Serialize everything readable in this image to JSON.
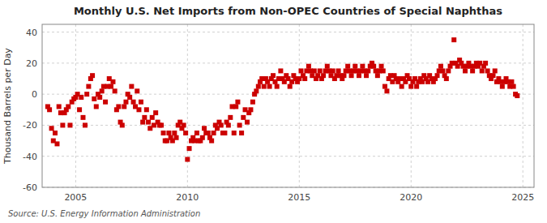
{
  "chart_data": {
    "type": "scatter",
    "title": "Monthly U.S. Net Imports from Non-OPEC Countries of Special Naphthas",
    "ylabel": "Thousand Barrels per Day",
    "annotations": [
      "Source: U.S. Energy Information Administration"
    ],
    "color": "#cc0000",
    "marker": "square",
    "grid": true,
    "xlim": [
      2003.5,
      2025.5
    ],
    "ylim": [
      -60,
      45
    ],
    "xticks": [
      2005,
      2010,
      2015,
      2020,
      2025
    ],
    "yticks": [
      -60,
      -40,
      -20,
      0,
      20,
      40
    ],
    "x": [
      2003.75,
      2003.83,
      2003.92,
      2004.0,
      2004.08,
      2004.17,
      2004.25,
      2004.33,
      2004.42,
      2004.5,
      2004.58,
      2004.67,
      2004.75,
      2004.83,
      2004.92,
      2005.0,
      2005.08,
      2005.17,
      2005.25,
      2005.33,
      2005.42,
      2005.5,
      2005.58,
      2005.67,
      2005.75,
      2005.83,
      2005.92,
      2006.0,
      2006.08,
      2006.17,
      2006.25,
      2006.33,
      2006.42,
      2006.5,
      2006.58,
      2006.67,
      2006.75,
      2006.83,
      2006.92,
      2007.0,
      2007.08,
      2007.17,
      2007.25,
      2007.33,
      2007.42,
      2007.5,
      2007.58,
      2007.67,
      2007.75,
      2007.83,
      2007.92,
      2008.0,
      2008.08,
      2008.17,
      2008.25,
      2008.33,
      2008.42,
      2008.5,
      2008.58,
      2008.67,
      2008.75,
      2008.83,
      2008.92,
      2009.0,
      2009.08,
      2009.17,
      2009.25,
      2009.33,
      2009.42,
      2009.5,
      2009.58,
      2009.67,
      2009.75,
      2009.83,
      2009.92,
      2010.0,
      2010.08,
      2010.17,
      2010.25,
      2010.33,
      2010.42,
      2010.5,
      2010.58,
      2010.67,
      2010.75,
      2010.83,
      2010.92,
      2011.0,
      2011.08,
      2011.17,
      2011.25,
      2011.33,
      2011.42,
      2011.5,
      2011.58,
      2011.67,
      2011.75,
      2011.83,
      2011.92,
      2012.0,
      2012.08,
      2012.17,
      2012.25,
      2012.33,
      2012.42,
      2012.5,
      2012.58,
      2012.67,
      2012.75,
      2012.83,
      2012.92,
      2013.0,
      2013.08,
      2013.17,
      2013.25,
      2013.33,
      2013.42,
      2013.5,
      2013.58,
      2013.67,
      2013.75,
      2013.83,
      2013.92,
      2014.0,
      2014.08,
      2014.17,
      2014.25,
      2014.33,
      2014.42,
      2014.5,
      2014.58,
      2014.67,
      2014.75,
      2014.83,
      2014.92,
      2015.0,
      2015.08,
      2015.17,
      2015.25,
      2015.33,
      2015.42,
      2015.5,
      2015.58,
      2015.67,
      2015.75,
      2015.83,
      2015.92,
      2016.0,
      2016.08,
      2016.17,
      2016.25,
      2016.33,
      2016.42,
      2016.5,
      2016.58,
      2016.67,
      2016.75,
      2016.83,
      2016.92,
      2017.0,
      2017.08,
      2017.17,
      2017.25,
      2017.33,
      2017.42,
      2017.5,
      2017.58,
      2017.67,
      2017.75,
      2017.83,
      2017.92,
      2018.0,
      2018.08,
      2018.17,
      2018.25,
      2018.33,
      2018.42,
      2018.5,
      2018.58,
      2018.67,
      2018.75,
      2018.83,
      2018.92,
      2019.0,
      2019.08,
      2019.17,
      2019.25,
      2019.33,
      2019.42,
      2019.5,
      2019.58,
      2019.67,
      2019.75,
      2019.83,
      2019.92,
      2020.0,
      2020.08,
      2020.17,
      2020.25,
      2020.33,
      2020.42,
      2020.5,
      2020.58,
      2020.67,
      2020.75,
      2020.83,
      2020.92,
      2021.0,
      2021.08,
      2021.17,
      2021.25,
      2021.33,
      2021.42,
      2021.5,
      2021.58,
      2021.67,
      2021.75,
      2021.83,
      2021.92,
      2022.0,
      2022.08,
      2022.17,
      2022.25,
      2022.33,
      2022.42,
      2022.5,
      2022.58,
      2022.67,
      2022.75,
      2022.83,
      2022.92,
      2023.0,
      2023.08,
      2023.17,
      2023.25,
      2023.33,
      2023.42,
      2023.5,
      2023.58,
      2023.67,
      2023.75,
      2023.83,
      2023.92,
      2024.0,
      2024.08,
      2024.17,
      2024.25,
      2024.33,
      2024.42,
      2024.5,
      2024.58,
      2024.67,
      2024.75
    ],
    "values": [
      -8,
      -10,
      -22,
      -30,
      -25,
      -32,
      -8,
      -12,
      -20,
      -12,
      -10,
      -8,
      -20,
      -5,
      -3,
      -2,
      0,
      -10,
      -2,
      -15,
      -20,
      0,
      5,
      10,
      12,
      -3,
      -8,
      0,
      -2,
      2,
      5,
      -5,
      5,
      10,
      5,
      8,
      2,
      -10,
      -8,
      -18,
      -20,
      -8,
      -5,
      0,
      -2,
      5,
      -5,
      -8,
      2,
      -10,
      -5,
      -18,
      -15,
      -10,
      -18,
      -22,
      -15,
      -20,
      -12,
      -18,
      -20,
      -20,
      -25,
      -30,
      -30,
      -25,
      -28,
      -30,
      -25,
      -28,
      -20,
      -18,
      -22,
      -20,
      -25,
      -42,
      -35,
      -30,
      -28,
      -30,
      -25,
      -30,
      -30,
      -28,
      -22,
      -25,
      -25,
      -28,
      -30,
      -25,
      -20,
      -22,
      -18,
      -20,
      -25,
      -25,
      -18,
      -20,
      -15,
      -8,
      -25,
      -8,
      -5,
      -20,
      -25,
      -15,
      -10,
      -18,
      -12,
      -10,
      -5,
      0,
      2,
      5,
      8,
      10,
      5,
      10,
      8,
      5,
      10,
      12,
      8,
      5,
      10,
      15,
      10,
      8,
      12,
      10,
      5,
      8,
      12,
      10,
      8,
      10,
      15,
      12,
      10,
      15,
      18,
      15,
      12,
      15,
      10,
      12,
      15,
      10,
      12,
      15,
      18,
      15,
      12,
      15,
      10,
      12,
      15,
      12,
      10,
      12,
      15,
      18,
      15,
      12,
      15,
      18,
      15,
      12,
      15,
      18,
      15,
      12,
      15,
      18,
      20,
      18,
      15,
      12,
      15,
      18,
      15,
      5,
      2,
      10,
      12,
      8,
      12,
      10,
      8,
      10,
      5,
      10,
      8,
      12,
      10,
      5,
      8,
      10,
      5,
      8,
      10,
      8,
      12,
      10,
      8,
      12,
      10,
      8,
      10,
      12,
      15,
      18,
      15,
      12,
      10,
      15,
      18,
      20,
      35,
      20,
      18,
      22,
      20,
      18,
      15,
      18,
      20,
      18,
      15,
      18,
      20,
      18,
      20,
      15,
      18,
      20,
      15,
      12,
      10,
      12,
      15,
      8,
      10,
      8,
      5,
      8,
      10,
      8,
      5,
      8,
      5,
      0,
      -1
    ]
  }
}
